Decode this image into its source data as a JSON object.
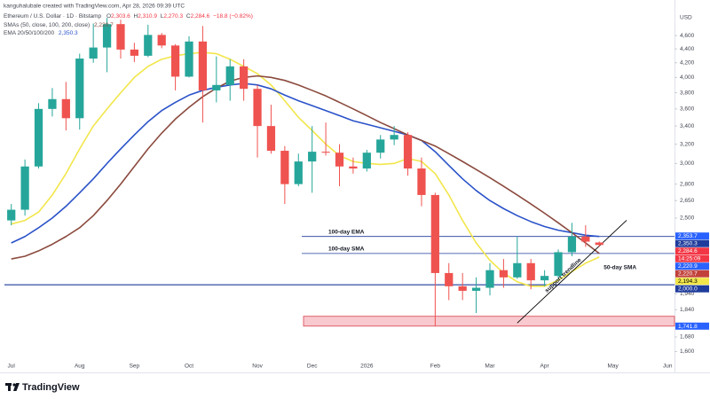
{
  "header": {
    "credit": "kanguhalubale created with TradingView.com, Apr 28, 2026 09:39 UTC",
    "symbol": "Ethereum / U.S. Dollar · 1D · Bitstamp",
    "ohlc": [
      {
        "key": "O",
        "value": "2,303.6"
      },
      {
        "key": "H",
        "value": "2,310.9"
      },
      {
        "key": "L",
        "value": "2,270.3"
      },
      {
        "key": "C",
        "value": "2,284.6"
      }
    ],
    "change": "−18.8 (−0.82%)",
    "indicators": [
      {
        "name": "SMAs (50, close, 100, 200, close)",
        "value": "2,220.7",
        "color": "#8b4a3e"
      },
      {
        "name": "EMA 20/50/100/200",
        "value": "2,350.3",
        "color": "#2a52c9"
      }
    ]
  },
  "chart_data": {
    "type": "candlestick",
    "currency": "USD",
    "log_scale": true,
    "grid": false,
    "up_color": "#26a69a",
    "down_color": "#ef5350",
    "categories": [
      "Jul",
      null,
      null,
      null,
      null,
      "Aug",
      null,
      null,
      null,
      "Sep",
      null,
      null,
      null,
      "Oct",
      null,
      null,
      null,
      null,
      "Nov",
      null,
      null,
      null,
      "Dec",
      null,
      null,
      null,
      "2026",
      null,
      null,
      null,
      null,
      "Feb",
      null,
      null,
      null,
      "Mar",
      null,
      null,
      null,
      "Apr",
      null,
      null,
      null,
      null,
      "May",
      null,
      null,
      null,
      "Jun"
    ],
    "open": [
      2480,
      2570,
      2970,
      3600,
      3720,
      3490,
      4260,
      4420,
      4780,
      4390,
      4300,
      4610,
      4450,
      4010,
      4510,
      3830,
      3900,
      4150,
      3850,
      3400,
      3130,
      2800,
      3020,
      3120,
      3110,
      2970,
      2950,
      3110,
      3250,
      3300,
      2950,
      2700,
      2080,
      1990,
      1960,
      1980,
      2100,
      2050,
      2150,
      2030,
      2060,
      2230,
      2350,
      2303.6,
      null,
      null,
      null,
      null,
      null
    ],
    "high": [
      2620,
      3040,
      3670,
      3860,
      3940,
      4330,
      4790,
      4880,
      4850,
      4490,
      4770,
      4640,
      4470,
      4590,
      4750,
      4290,
      4250,
      4250,
      3900,
      3650,
      3180,
      3100,
      3400,
      3440,
      3200,
      3060,
      3140,
      3300,
      3400,
      3330,
      3060,
      2720,
      2150,
      2080,
      2050,
      2150,
      2180,
      2350,
      2180,
      2100,
      2250,
      2460,
      2440,
      2310.9,
      null,
      null,
      null,
      null,
      null
    ],
    "low": [
      2440,
      2520,
      2950,
      3510,
      3350,
      3360,
      4200,
      4070,
      4260,
      4210,
      4280,
      4410,
      3830,
      4000,
      3440,
      3680,
      3700,
      3700,
      3060,
      3100,
      2620,
      2780,
      2720,
      3080,
      2780,
      2900,
      2920,
      3050,
      3190,
      2880,
      2600,
      1741.8,
      1900,
      1900,
      1820,
      1930,
      1980,
      2040,
      1970,
      1990,
      2040,
      2200,
      2270,
      2270.3,
      null,
      null,
      null,
      null,
      null
    ],
    "close": [
      2570,
      2970,
      3600,
      3720,
      3490,
      4260,
      4420,
      4780,
      4390,
      4300,
      4610,
      4450,
      4010,
      4510,
      3830,
      3900,
      4150,
      3850,
      3400,
      3130,
      2800,
      3020,
      3120,
      3110,
      2970,
      2950,
      3110,
      3250,
      3300,
      2950,
      2700,
      2080,
      1990,
      1960,
      1980,
      2100,
      2050,
      2150,
      2030,
      2060,
      2230,
      2350,
      2310,
      2284.6,
      null,
      null,
      null,
      null,
      null
    ],
    "series": [
      {
        "name": "50-day SMA",
        "color": "#f2e64b",
        "values": [
          2450,
          2480,
          2550,
          2700,
          2900,
          3150,
          3400,
          3600,
          3800,
          4000,
          4150,
          4250,
          4300,
          4330,
          4350,
          4330,
          4250,
          4150,
          4050,
          3900,
          3700,
          3500,
          3350,
          3200,
          3080,
          3020,
          3000,
          2990,
          3000,
          3050,
          3020,
          2900,
          2700,
          2480,
          2300,
          2170,
          2080,
          2020,
          1990,
          1990,
          2030,
          2090,
          2150,
          2194.3,
          null,
          null,
          null,
          null,
          null
        ]
      },
      {
        "color": "#2a52c9",
        "values": [
          2300,
          2350,
          2420,
          2500,
          2600,
          2720,
          2850,
          3000,
          3150,
          3300,
          3450,
          3580,
          3680,
          3770,
          3830,
          3870,
          3900,
          3920,
          3900,
          3850,
          3770,
          3700,
          3640,
          3580,
          3520,
          3460,
          3420,
          3380,
          3340,
          3300,
          3240,
          3120,
          2980,
          2850,
          2740,
          2650,
          2580,
          2520,
          2470,
          2430,
          2400,
          2380,
          2360,
          2350.3,
          null,
          null,
          null,
          null,
          null
        ]
      },
      {
        "color": "#8b4a3e",
        "values": [
          2180,
          2200,
          2240,
          2290,
          2350,
          2420,
          2520,
          2650,
          2800,
          2970,
          3150,
          3320,
          3480,
          3620,
          3750,
          3860,
          3950,
          4000,
          4020,
          4000,
          3960,
          3900,
          3830,
          3760,
          3680,
          3600,
          3520,
          3440,
          3370,
          3300,
          3240,
          3180,
          3100,
          3020,
          2940,
          2860,
          2780,
          2700,
          2620,
          2540,
          2460,
          2380,
          2300,
          2220.7,
          null,
          null,
          null,
          null,
          null
        ]
      },
      {
        "name": "support trendline",
        "color": "#000000",
        "values": [
          null,
          null,
          null,
          null,
          null,
          null,
          null,
          null,
          null,
          null,
          null,
          null,
          null,
          null,
          null,
          null,
          null,
          null,
          null,
          null,
          null,
          null,
          null,
          null,
          null,
          null,
          null,
          null,
          null,
          null,
          null,
          null,
          null,
          null,
          null,
          null,
          null,
          1760,
          1837,
          1918,
          2002,
          2090,
          2181,
          2277,
          2377,
          2481,
          null,
          null,
          null
        ]
      }
    ],
    "levels": [
      {
        "value": 2350.3,
        "label": "100-day EMA",
        "color": "#1f3c9c"
      },
      {
        "value": 2220.7,
        "label": "100-day SMA",
        "color": "#1f3c9c"
      },
      {
        "value": 2000,
        "color": "#1f3c9c"
      }
    ],
    "zone": {
      "low": 1741.8,
      "high": 1800,
      "color": "#f8c9ce",
      "border": "#d9434f"
    },
    "ylim": [
      1560,
      5000
    ],
    "yticks": [
      {
        "value": 4600,
        "label": "4,600"
      },
      {
        "value": 4400,
        "label": "4,400"
      },
      {
        "value": 4200,
        "label": "4,200"
      },
      {
        "value": 4000,
        "label": "4,000"
      },
      {
        "value": 3800,
        "label": "3,800"
      },
      {
        "value": 3600,
        "label": "3,600"
      },
      {
        "value": 3400,
        "label": "3,400"
      },
      {
        "value": 3200,
        "label": "3,200"
      },
      {
        "value": 3000,
        "label": "3,000"
      },
      {
        "value": 2800,
        "label": "2,800"
      },
      {
        "value": 2650,
        "label": "2,650"
      },
      {
        "value": 2500,
        "label": "2,500"
      },
      {
        "value": 1940,
        "label": "1,940"
      },
      {
        "value": 1840,
        "label": "1,840"
      },
      {
        "value": 1680,
        "label": "1,680"
      },
      {
        "value": 1600,
        "label": "1,600"
      }
    ],
    "price_badges": [
      {
        "value": 2353.7,
        "label": "2,353.7",
        "color": "#2962ff"
      },
      {
        "value": 2350.3,
        "label": "2,350.3",
        "color": "#1f3c9c"
      },
      {
        "value": 2284.6,
        "label": "2,284.6",
        "color": "#f23645",
        "countdown": "14:25:09"
      },
      {
        "value": 2220.9,
        "label": "2,220.9",
        "color": "#2962ff"
      },
      {
        "value": 2220.7,
        "label": "2,220.7",
        "color": "#c2413b"
      },
      {
        "value": 2194.3,
        "label": "2,194.3",
        "color": "#f2e64b",
        "text_color": "#000000"
      },
      {
        "value": 2000,
        "label": "2,000.0",
        "color": "#1f3c9c"
      },
      {
        "value": 1741.8,
        "label": "1,741.8",
        "color": "#2962ff"
      }
    ]
  },
  "footer": {
    "brand": "TradingView"
  }
}
